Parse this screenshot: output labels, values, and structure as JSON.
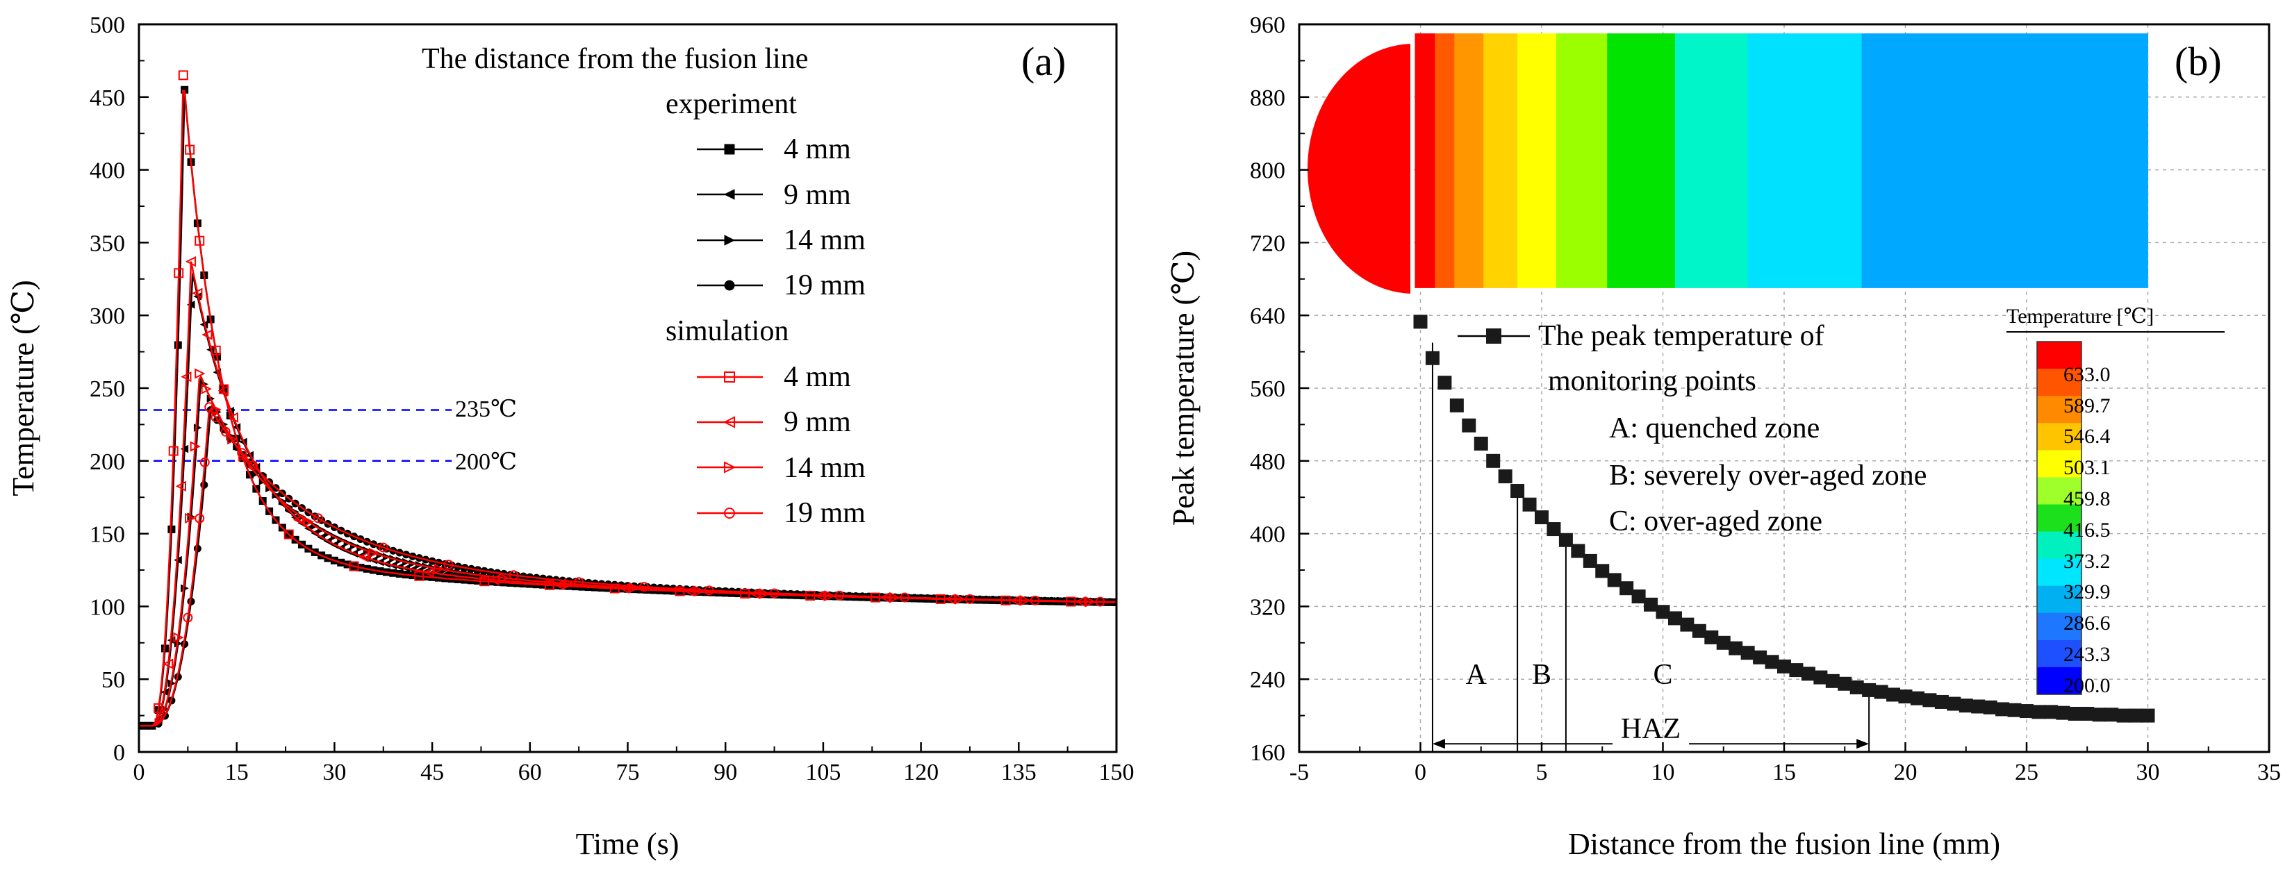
{
  "chart_data": [
    {
      "type": "line",
      "panel_label": "(a)",
      "xlabel": "Time (s)",
      "ylabel": "Temperature (℃)",
      "xlim": [
        0,
        150
      ],
      "ylim": [
        0,
        500
      ],
      "xticks": [
        0,
        15,
        30,
        45,
        60,
        75,
        90,
        105,
        120,
        135,
        150
      ],
      "yticks": [
        0,
        50,
        100,
        150,
        200,
        250,
        300,
        350,
        400,
        450,
        500
      ],
      "legend_title": "The distance from the fusion line",
      "legend_group_experiment": "experiment",
      "legend_group_simulation": "simulation",
      "reference_lines": [
        {
          "value": 235,
          "label": "235℃",
          "color": "#0000ff"
        },
        {
          "value": 200,
          "label": "200℃",
          "color": "#0000ff"
        }
      ],
      "series": [
        {
          "name": "4 mm",
          "group": "experiment",
          "color": "#000000",
          "marker": "square-filled",
          "peak_time": 7.0,
          "peak": 455,
          "rise": 1.2,
          "decay": 6
        },
        {
          "name": "9 mm",
          "group": "experiment",
          "color": "#000000",
          "marker": "tri-left-filled",
          "peak_time": 8.2,
          "peak": 330,
          "rise": 1.5,
          "decay": 9
        },
        {
          "name": "14 mm",
          "group": "experiment",
          "color": "#000000",
          "marker": "tri-right-filled",
          "peak_time": 9.5,
          "peak": 258,
          "rise": 1.9,
          "decay": 12
        },
        {
          "name": "19 mm",
          "group": "experiment",
          "color": "#000000",
          "marker": "circle-filled",
          "peak_time": 11.0,
          "peak": 235,
          "rise": 2.3,
          "decay": 15
        },
        {
          "name": "4 mm",
          "group": "simulation",
          "color": "#ff0000",
          "marker": "square-open",
          "peak_time": 6.8,
          "peak": 465,
          "rise": 1.1,
          "decay": 6
        },
        {
          "name": "9 mm",
          "group": "simulation",
          "color": "#ff0000",
          "marker": "tri-left-open",
          "peak_time": 8.0,
          "peak": 337,
          "rise": 1.4,
          "decay": 9
        },
        {
          "name": "14 mm",
          "group": "simulation",
          "color": "#ff0000",
          "marker": "tri-right-open",
          "peak_time": 9.3,
          "peak": 260,
          "rise": 1.8,
          "decay": 12
        },
        {
          "name": "19 mm",
          "group": "simulation",
          "color": "#ff0000",
          "marker": "circle-open",
          "peak_time": 10.8,
          "peak": 237,
          "rise": 2.2,
          "decay": 15
        }
      ]
    },
    {
      "type": "scatter",
      "panel_label": "(b)",
      "xlabel": "Distance from the fusion line (mm)",
      "ylabel": "Peak temperature (℃)",
      "xlim": [
        -5,
        35
      ],
      "ylim": [
        160,
        960
      ],
      "xticks": [
        -5,
        0,
        5,
        10,
        15,
        20,
        25,
        30,
        35
      ],
      "yticks": [
        160,
        240,
        320,
        400,
        480,
        560,
        640,
        720,
        800,
        880,
        960
      ],
      "series_name": "The peak temperature of monitoring points",
      "series_name_line1": "The peak temperature of",
      "series_name_line2": "monitoring points",
      "x": [
        0.0,
        0.5,
        1.0,
        1.5,
        2.0,
        2.5,
        3.0,
        3.5,
        4.0,
        4.5,
        5.0,
        5.5,
        6.0,
        6.5,
        7.0,
        7.5,
        8.0,
        8.5,
        9.0,
        9.5,
        10.0,
        10.5,
        11.0,
        11.5,
        12.0,
        12.5,
        13.0,
        13.5,
        14.0,
        14.5,
        15.0,
        15.5,
        16.0,
        16.5,
        17.0,
        17.5,
        18.0,
        18.5,
        19.0,
        19.5,
        20.0,
        20.5,
        21.0,
        21.5,
        22.0,
        22.5,
        23.0,
        23.5,
        24.0,
        24.5,
        25.0,
        25.5,
        26.0,
        26.5,
        27.0,
        27.5,
        28.0,
        28.5,
        29.0,
        29.5,
        30.0
      ],
      "values": [
        633,
        593,
        566,
        541,
        519,
        499,
        480,
        463,
        447,
        432,
        418,
        405,
        393,
        381,
        370,
        359,
        349,
        340,
        331,
        322,
        314,
        307,
        300,
        293,
        286,
        280,
        274,
        269,
        264,
        259,
        254,
        250,
        246,
        242,
        238,
        235,
        231,
        228,
        226,
        223,
        221,
        219,
        217,
        215,
        213,
        211,
        210,
        209,
        207,
        206,
        205,
        204,
        204,
        203,
        202,
        202,
        201,
        201,
        200,
        200,
        200
      ],
      "zone_lines_x": [
        0.5,
        4.0,
        6.0,
        18.5
      ],
      "zones": [
        {
          "label": "A",
          "x": 2.3
        },
        {
          "label": "B",
          "x": 5.0
        },
        {
          "label": "C",
          "x": 10.0
        }
      ],
      "haz_label": "HAZ",
      "haz_range": [
        0.5,
        18.5
      ],
      "zone_legend": [
        "A: quenched zone",
        "B: severely over-aged zone",
        "C:  over-aged zone"
      ],
      "colorbar": {
        "title": "Temperature [℃]",
        "labels": [
          "633.0",
          "589.7",
          "546.4",
          "503.1",
          "459.8",
          "416.5",
          "373.2",
          "329.9",
          "286.6",
          "243.3",
          "200.0"
        ],
        "colors": [
          "#ff0000",
          "#ff5500",
          "#ff8a00",
          "#ffc400",
          "#ffff00",
          "#9fff2a",
          "#1de01d",
          "#00f0c0",
          "#00e6ff",
          "#00b0f0",
          "#1e78ff",
          "#1e50ff",
          "#0000ff"
        ]
      },
      "contour_bands": [
        "#ff0000",
        "#ff5a00",
        "#ff9600",
        "#ffd200",
        "#ffff00",
        "#9cff00",
        "#00e400",
        "#00f5c8",
        "#00e0ff",
        "#00a8ff",
        "#1f78ff",
        "#1f5cff"
      ]
    }
  ]
}
